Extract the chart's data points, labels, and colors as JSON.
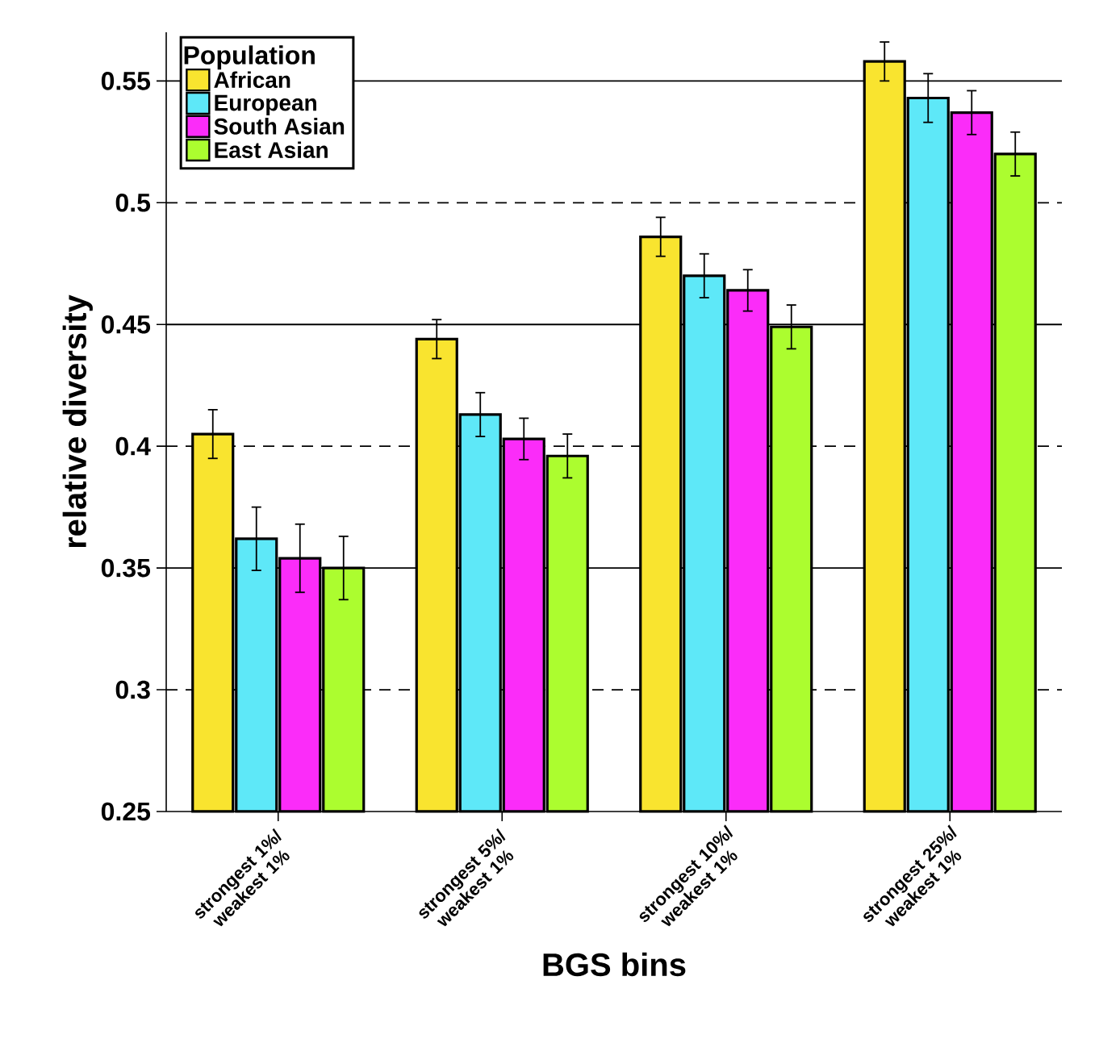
{
  "chart_data": {
    "type": "bar",
    "xlabel": "BGS bins",
    "ylabel": "relative diversity",
    "legend_title": "Population",
    "categories": [
      "strongest 1%/ weakest 1%",
      "strongest 5%/ weakest 1%",
      "strongest 10%/ weakest 1%",
      "strongest 25%/ weakest 1%"
    ],
    "series": [
      {
        "name": "African",
        "color": "#f9e42f",
        "values": [
          0.405,
          0.444,
          0.486,
          0.558
        ],
        "errors": [
          0.01,
          0.008,
          0.008,
          0.008
        ]
      },
      {
        "name": "European",
        "color": "#5ee8f8",
        "values": [
          0.362,
          0.413,
          0.47,
          0.543
        ],
        "errors": [
          0.013,
          0.009,
          0.009,
          0.01
        ]
      },
      {
        "name": "South Asian",
        "color": "#fb2cf9",
        "values": [
          0.354,
          0.403,
          0.464,
          0.537
        ],
        "errors": [
          0.014,
          0.0085,
          0.0085,
          0.009
        ]
      },
      {
        "name": "East Asian",
        "color": "#acfd2f",
        "values": [
          0.35,
          0.396,
          0.449,
          0.52
        ],
        "errors": [
          0.013,
          0.009,
          0.009,
          0.009
        ]
      }
    ],
    "ylim": [
      0.25,
      0.57
    ],
    "yticks": [
      0.25,
      0.3,
      0.35,
      0.4,
      0.45,
      0.5,
      0.55
    ],
    "ref_lines": [
      {
        "axis": "y",
        "value": 0.3,
        "line_style": "dashed"
      },
      {
        "axis": "y",
        "value": 0.35,
        "line_style": "solid"
      },
      {
        "axis": "y",
        "value": 0.4,
        "line_style": "dashed"
      },
      {
        "axis": "y",
        "value": 0.45,
        "line_style": "solid"
      },
      {
        "axis": "y",
        "value": 0.5,
        "line_style": "dashed"
      },
      {
        "axis": "y",
        "value": 0.55,
        "line_style": "solid"
      }
    ],
    "legend": "top left"
  }
}
